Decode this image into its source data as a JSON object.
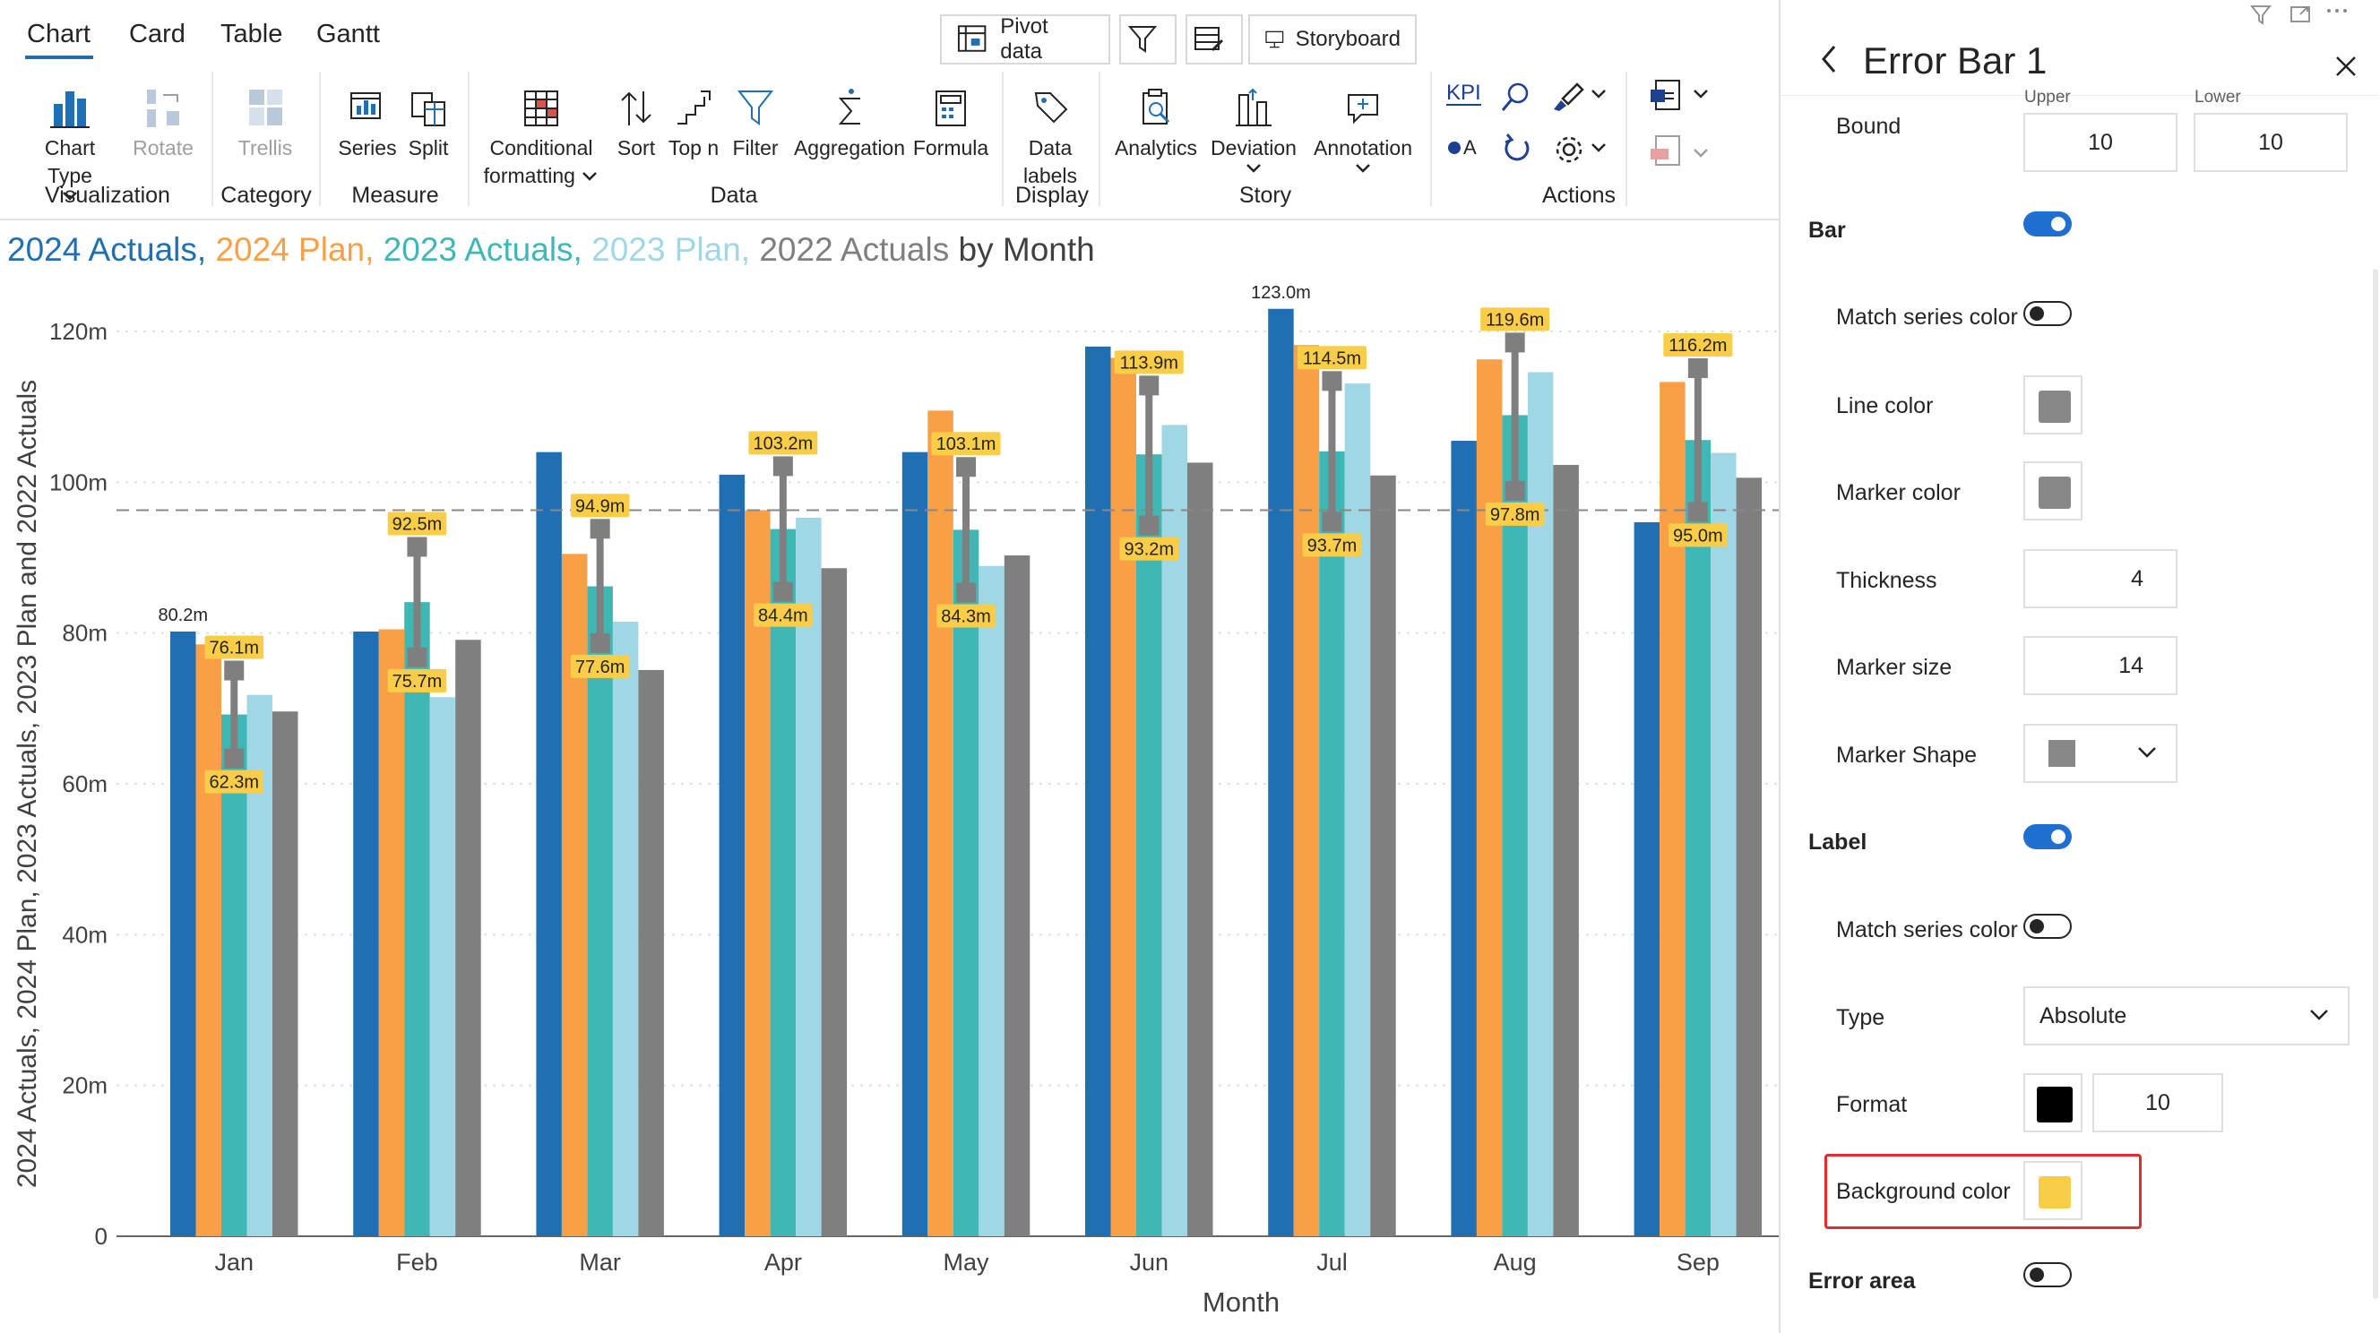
{
  "tabs": [
    {
      "label": "Chart",
      "active": true
    },
    {
      "label": "Card",
      "active": false
    },
    {
      "label": "Table",
      "active": false
    },
    {
      "label": "Gantt",
      "active": false
    }
  ],
  "top_buttons": {
    "pivot": "Pivot data",
    "storyboard": "Storyboard"
  },
  "ribbon": {
    "chart_type": "Chart Type",
    "rotate": "Rotate",
    "trellis": "Trellis",
    "series": "Series",
    "split": "Split",
    "conditional_1": "Conditional",
    "conditional_2": "formatting",
    "sort": "Sort",
    "topn": "Top n",
    "filter": "Filter",
    "aggregation": "Aggregation",
    "formula": "Formula",
    "data_labels_1": "Data",
    "data_labels_2": "labels",
    "analytics": "Analytics",
    "deviation": "Deviation",
    "annotation": "Annotation",
    "kpi": "KPI",
    "kpi_a": "A",
    "groups": {
      "visualization": "Visualization",
      "category": "Category",
      "measure": "Measure",
      "data": "Data",
      "display": "Display",
      "story": "Story",
      "actions": "Actions"
    }
  },
  "chart": {
    "title_parts": [
      {
        "text": "2024 Actuals,",
        "color": "#1f6fb2"
      },
      {
        "text": "2024 Plan,",
        "color": "#f9a046"
      },
      {
        "text": "2023 Actuals,",
        "color": "#3fb7b4"
      },
      {
        "text": "2023 Plan,",
        "color": "#9fd8e4"
      },
      {
        "text": "2022 Actuals",
        "color": "#7f7f7f"
      },
      {
        "text": "by Month",
        "color": "#404040"
      }
    ]
  },
  "chart_data": {
    "type": "bar",
    "categories": [
      "Jan",
      "Feb",
      "Mar",
      "Apr",
      "May",
      "Jun",
      "Jul",
      "Aug",
      "Sep"
    ],
    "xlabel": "Month",
    "ylabel": "2024 Actuals, 2024 Plan, 2023 Actuals, 2023 Plan and 2022 Actuals",
    "ylim": [
      0,
      125
    ],
    "yticks": [
      0,
      20,
      40,
      60,
      80,
      100,
      120
    ],
    "ytick_labels": [
      "0",
      "20m",
      "40m",
      "60m",
      "80m",
      "100m",
      "120m"
    ],
    "reference_line": 96.3,
    "series": [
      {
        "name": "2024 Actuals",
        "color": "#1f6fb2",
        "values": [
          80.2,
          80.2,
          104,
          101,
          104,
          118,
          123.0,
          105.5,
          94.7
        ]
      },
      {
        "name": "2024 Plan",
        "color": "#f9a046",
        "values": [
          78.5,
          80.5,
          90.5,
          96.3,
          109.5,
          116.5,
          118.2,
          116.3,
          113.3
        ]
      },
      {
        "name": "2023 Actuals",
        "color": "#3fb7b4",
        "values": [
          69.2,
          84.1,
          86.2,
          93.8,
          93.7,
          103.7,
          104.1,
          108.9,
          105.6
        ]
      },
      {
        "name": "2023 Plan",
        "color": "#9fd8e4",
        "values": [
          71.8,
          71.5,
          81.5,
          95.3,
          88.9,
          107.6,
          113.1,
          114.6,
          103.9
        ]
      },
      {
        "name": "2022 Actuals",
        "color": "#7f7f7f",
        "values": [
          69.6,
          79.1,
          75.1,
          88.6,
          90.3,
          102.6,
          100.9,
          102.3,
          100.6
        ]
      }
    ],
    "top_labels": [
      {
        "category": "Jan",
        "value": 80.2,
        "text": "80.2m"
      },
      {
        "category": "Jul",
        "value": 123.0,
        "text": "123.0m"
      }
    ],
    "error_bars": [
      {
        "category": "Jan",
        "upper": 76.1,
        "lower": 62.3,
        "upper_label": "76.1m",
        "lower_label": "62.3m"
      },
      {
        "category": "Feb",
        "upper": 92.5,
        "lower": 75.7,
        "upper_label": "92.5m",
        "lower_label": "75.7m"
      },
      {
        "category": "Mar",
        "upper": 94.9,
        "lower": 77.6,
        "upper_label": "94.9m",
        "lower_label": "77.6m"
      },
      {
        "category": "Apr",
        "upper": 103.2,
        "lower": 84.4,
        "upper_label": "103.2m",
        "lower_label": "84.4m"
      },
      {
        "category": "May",
        "upper": 103.1,
        "lower": 84.3,
        "upper_label": "103.1m",
        "lower_label": "84.3m"
      },
      {
        "category": "Jun",
        "upper": 113.9,
        "lower": 93.2,
        "upper_label": "113.9m",
        "lower_label": "93.2m"
      },
      {
        "category": "Jul",
        "upper": 114.5,
        "lower": 93.7,
        "upper_label": "114.5m",
        "lower_label": "93.7m"
      },
      {
        "category": "Aug",
        "upper": 119.6,
        "lower": 97.8,
        "upper_label": "119.6m",
        "lower_label": "97.8m"
      },
      {
        "category": "Sep",
        "upper": 116.2,
        "lower": 95.0,
        "upper_label": "116.2m",
        "lower_label": "95.0m"
      }
    ],
    "error_bar_color": "#7f7f7f",
    "label_background": "#f9cd48"
  },
  "panel": {
    "title": "Error Bar 1",
    "bound_label": "Bound",
    "upper_label": "Upper",
    "lower_label": "Lower",
    "upper_value": "10",
    "lower_value": "10",
    "bar_label": "Bar",
    "bar_on": true,
    "match_series_color_label": "Match series color",
    "line_color_label": "Line color",
    "line_color": "#888888",
    "marker_color_label": "Marker color",
    "marker_color": "#888888",
    "thickness_label": "Thickness",
    "thickness_value": "4",
    "marker_size_label": "Marker size",
    "marker_size_value": "14",
    "marker_shape_label": "Marker Shape",
    "label_section": "Label",
    "label_on": true,
    "label_match_series_color_label": "Match series color",
    "type_label": "Type",
    "type_value": "Absolute",
    "format_label": "Format",
    "format_color": "#000000",
    "format_value": "10",
    "background_color_label": "Background color",
    "background_color": "#f9cd48",
    "error_area_label": "Error area"
  }
}
